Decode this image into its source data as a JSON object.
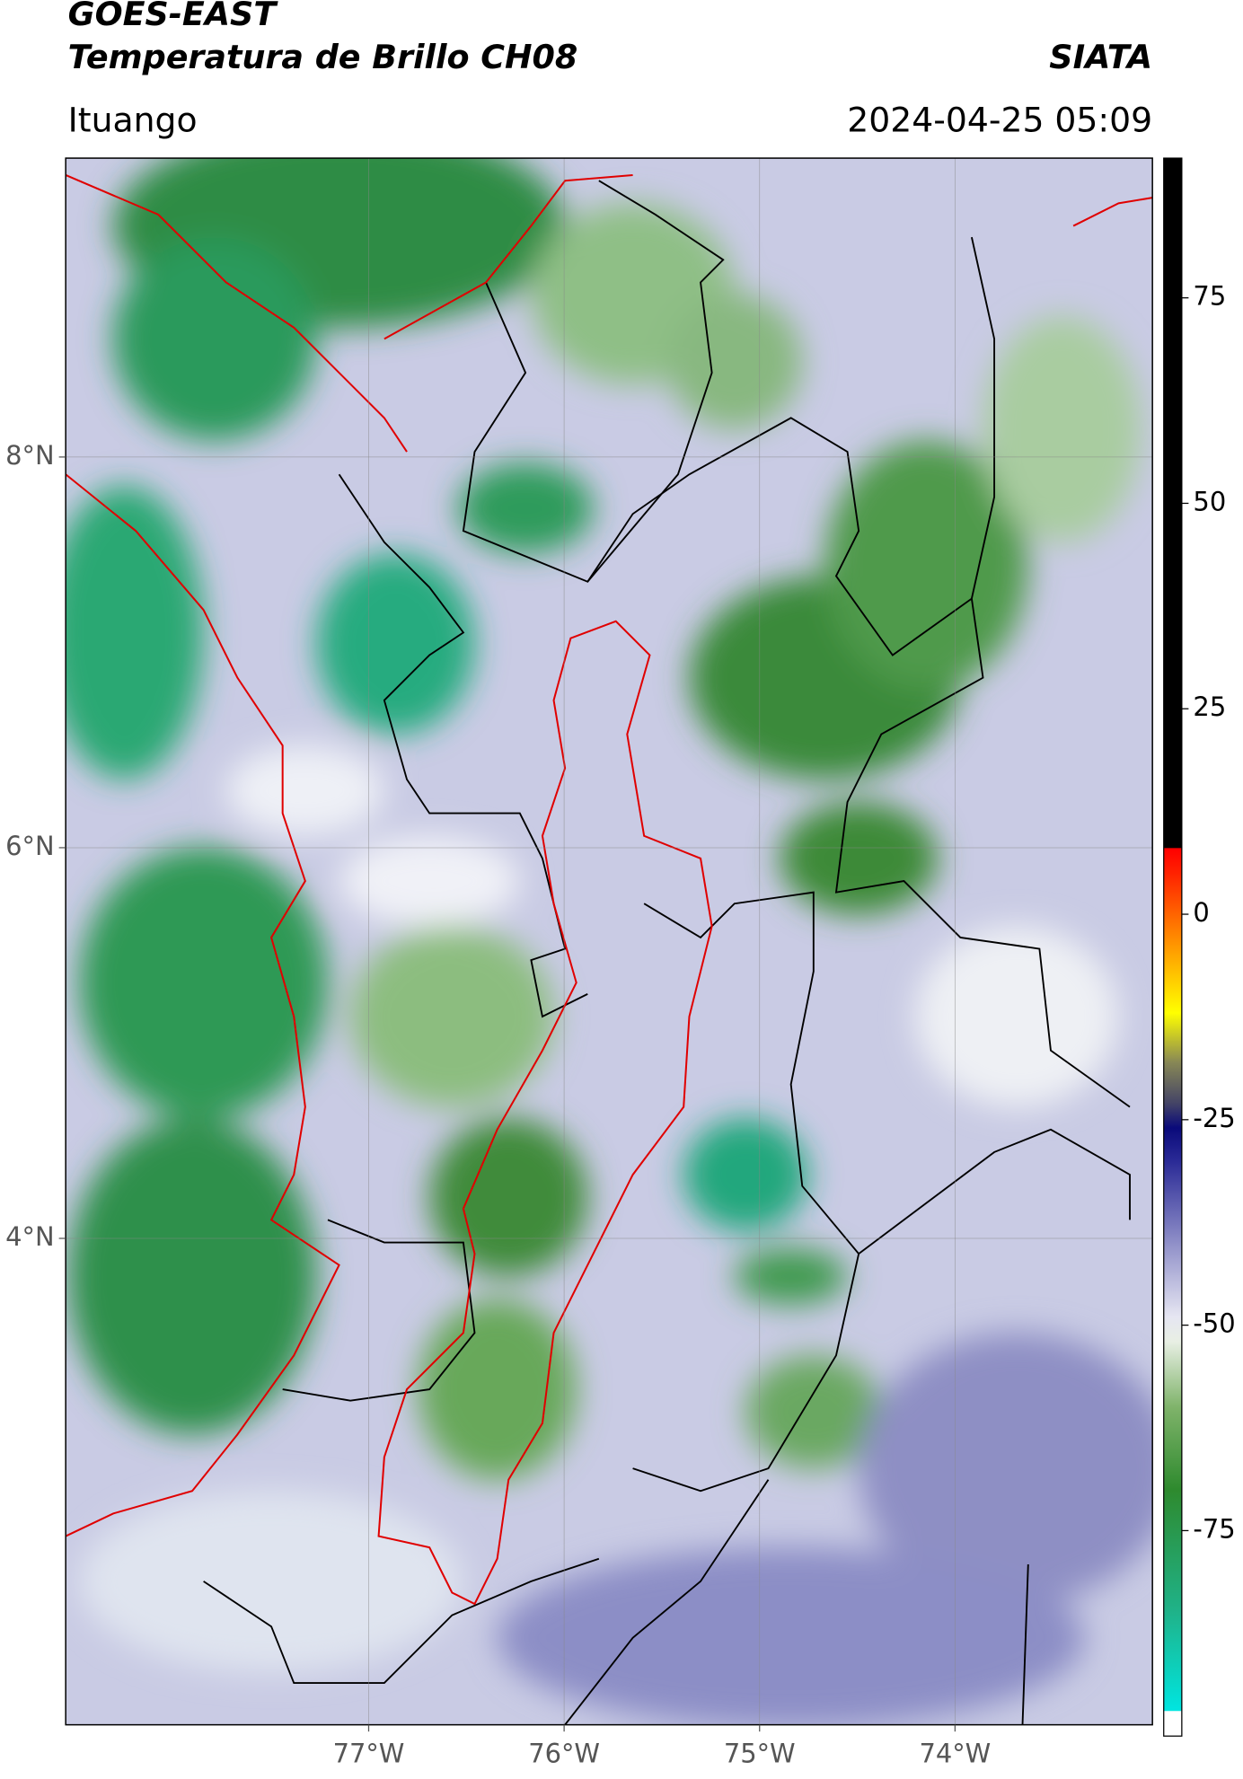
{
  "header": {
    "title": "GOES-EAST",
    "subtitle": "Temperatura de Brillo CH08",
    "source": "SIATA",
    "place": "Ituango",
    "datetime": "2024-04-25 05:09"
  },
  "map": {
    "xlim": [
      -78.55,
      -72.99
    ],
    "ylim": [
      1.51,
      9.53
    ],
    "xticks": [
      {
        "value": -77,
        "label": "77°W"
      },
      {
        "value": -76,
        "label": "76°W"
      },
      {
        "value": -75,
        "label": "75°W"
      },
      {
        "value": -74,
        "label": "74°W"
      }
    ],
    "yticks": [
      {
        "value": 4,
        "label": "4°N"
      },
      {
        "value": 6,
        "label": "6°N"
      },
      {
        "value": 8,
        "label": "8°N"
      }
    ],
    "grid": true
  },
  "colorbar": {
    "clim": [
      -100,
      92
    ],
    "ticks": [
      -75,
      -50,
      -25,
      0,
      25,
      50,
      75
    ],
    "colormap": [
      [
        -100,
        "#ffffff"
      ],
      [
        -97,
        "#ffffff"
      ],
      [
        -96.9,
        "#00e5e0"
      ],
      [
        -85,
        "#1fb38a"
      ],
      [
        -70,
        "#2e8a2e"
      ],
      [
        -60,
        "#7fb36a"
      ],
      [
        -52,
        "#e8efe4"
      ],
      [
        -49,
        "#e6e6f2"
      ],
      [
        -40,
        "#8f8fc8"
      ],
      [
        -30,
        "#2a2a96"
      ],
      [
        -26,
        "#0a0a7a"
      ],
      [
        -23,
        "#444466"
      ],
      [
        -18,
        "#888855"
      ],
      [
        -12,
        "#ffff00"
      ],
      [
        -4,
        "#ff9900"
      ],
      [
        5,
        "#ff2200"
      ],
      [
        8,
        "#ff0000"
      ],
      [
        8.1,
        "#000000"
      ],
      [
        92,
        "#000000"
      ]
    ]
  }
}
